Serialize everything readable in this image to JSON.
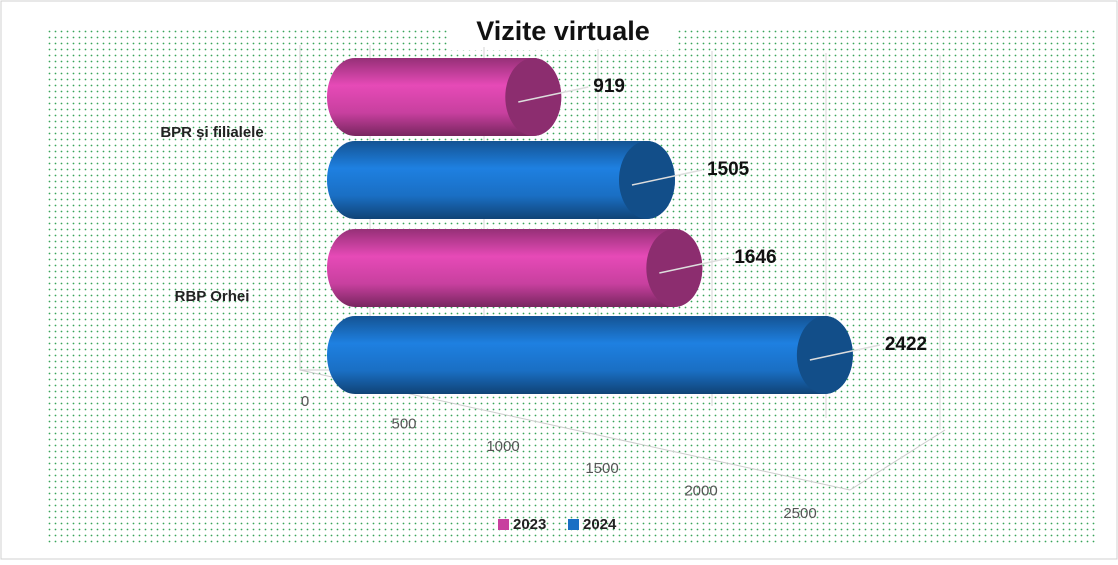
{
  "chart_data": {
    "type": "bar",
    "orientation": "horizontal",
    "title": "Vizite virtuale",
    "categories": [
      "BPR și filialele",
      "RBP Orhei"
    ],
    "series": [
      {
        "name": "2023",
        "color": "#c8409f",
        "values": [
          919,
          1646
        ]
      },
      {
        "name": "2024",
        "color": "#1a6fc4",
        "values": [
          1505,
          2422
        ]
      }
    ],
    "xlim": [
      0,
      2500
    ],
    "xticks": [
      0,
      500,
      1000,
      1500,
      2000,
      2500
    ],
    "grid": true,
    "legend": "bottom"
  }
}
